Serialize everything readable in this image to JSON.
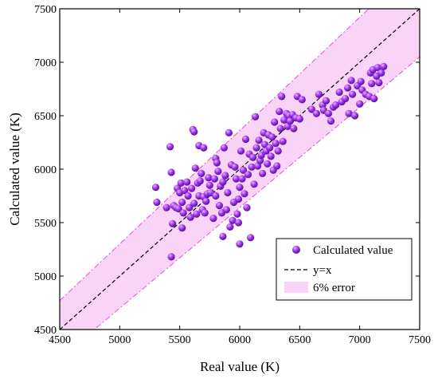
{
  "chart_data": {
    "type": "scatter",
    "title": "",
    "xlabel": "Real value (K)",
    "ylabel": "Calculated value (K)",
    "xlim": [
      4500,
      7500
    ],
    "ylim": [
      4500,
      7500
    ],
    "xticks": [
      "4500",
      "5000",
      "5500",
      "6000",
      "6500",
      "7000",
      "7500"
    ],
    "yticks": [
      "4500",
      "5000",
      "5500",
      "6000",
      "6500",
      "7000",
      "7500"
    ],
    "error_band_fraction": 0.06,
    "legend_position": "bottom-right",
    "legend": {
      "points": "Calculated value",
      "line": "y=x",
      "band": "6% error"
    },
    "colors": {
      "points": "#9b30e8",
      "band_fill": "#f9d4f6",
      "band_edge": "#e24fdc",
      "identity_line": "#000000"
    },
    "series": [
      {
        "name": "Calculated value",
        "points": [
          [
            5300,
            5830
          ],
          [
            5310,
            5690
          ],
          [
            5390,
            5640
          ],
          [
            5420,
            6210
          ],
          [
            5430,
            5970
          ],
          [
            5430,
            5180
          ],
          [
            5440,
            5490
          ],
          [
            5450,
            5660
          ],
          [
            5470,
            5640
          ],
          [
            5480,
            5820
          ],
          [
            5490,
            5630
          ],
          [
            5500,
            5780
          ],
          [
            5510,
            5870
          ],
          [
            5520,
            5690
          ],
          [
            5520,
            5450
          ],
          [
            5530,
            5590
          ],
          [
            5540,
            5800
          ],
          [
            5560,
            5880
          ],
          [
            5570,
            5750
          ],
          [
            5580,
            5640
          ],
          [
            5590,
            5550
          ],
          [
            5600,
            5820
          ],
          [
            5610,
            6370
          ],
          [
            5620,
            6350
          ],
          [
            5620,
            5680
          ],
          [
            5630,
            6010
          ],
          [
            5640,
            5580
          ],
          [
            5650,
            5870
          ],
          [
            5660,
            5750
          ],
          [
            5660,
            6220
          ],
          [
            5670,
            5890
          ],
          [
            5680,
            5960
          ],
          [
            5690,
            5620
          ],
          [
            5700,
            6200
          ],
          [
            5700,
            5740
          ],
          [
            5710,
            5590
          ],
          [
            5720,
            5700
          ],
          [
            5730,
            5770
          ],
          [
            5740,
            5920
          ],
          [
            5750,
            5850
          ],
          [
            5760,
            5780
          ],
          [
            5780,
            5540
          ],
          [
            5790,
            5910
          ],
          [
            5800,
            5750
          ],
          [
            5800,
            6100
          ],
          [
            5810,
            6060
          ],
          [
            5820,
            5980
          ],
          [
            5830,
            5660
          ],
          [
            5840,
            5840
          ],
          [
            5850,
            5590
          ],
          [
            5860,
            5370
          ],
          [
            5860,
            5880
          ],
          [
            5870,
            6200
          ],
          [
            5880,
            5940
          ],
          [
            5890,
            5620
          ],
          [
            5900,
            5780
          ],
          [
            5910,
            6340
          ],
          [
            5920,
            5460
          ],
          [
            5930,
            6040
          ],
          [
            5940,
            5520
          ],
          [
            5950,
            5690
          ],
          [
            5960,
            6020
          ],
          [
            5970,
            5910
          ],
          [
            5980,
            5580
          ],
          [
            5990,
            5720
          ],
          [
            5990,
            5500
          ],
          [
            6000,
            5830
          ],
          [
            6000,
            5300
          ],
          [
            6010,
            6170
          ],
          [
            6020,
            5910
          ],
          [
            6030,
            5990
          ],
          [
            6040,
            5770
          ],
          [
            6050,
            6280
          ],
          [
            6060,
            5640
          ],
          [
            6070,
            5950
          ],
          [
            6080,
            6140
          ],
          [
            6090,
            5360
          ],
          [
            6100,
            6020
          ],
          [
            6110,
            6110
          ],
          [
            6120,
            5860
          ],
          [
            6130,
            6490
          ],
          [
            6140,
            6200
          ],
          [
            6150,
            6030
          ],
          [
            6160,
            6270
          ],
          [
            6170,
            6080
          ],
          [
            6180,
            6130
          ],
          [
            6190,
            5960
          ],
          [
            6200,
            6340
          ],
          [
            6210,
            6230
          ],
          [
            6220,
            6170
          ],
          [
            6230,
            6050
          ],
          [
            6240,
            6320
          ],
          [
            6250,
            6200
          ],
          [
            6260,
            6120
          ],
          [
            6270,
            6300
          ],
          [
            6280,
            5990
          ],
          [
            6290,
            6440
          ],
          [
            6300,
            6240
          ],
          [
            6310,
            6030
          ],
          [
            6320,
            6170
          ],
          [
            6330,
            6540
          ],
          [
            6340,
            6380
          ],
          [
            6350,
            6680
          ],
          [
            6360,
            6260
          ],
          [
            6370,
            6460
          ],
          [
            6390,
            6520
          ],
          [
            6400,
            6400
          ],
          [
            6410,
            6500
          ],
          [
            6420,
            6450
          ],
          [
            6440,
            6510
          ],
          [
            6450,
            6380
          ],
          [
            6470,
            6480
          ],
          [
            6480,
            6680
          ],
          [
            6500,
            6470
          ],
          [
            6520,
            6650
          ],
          [
            6600,
            6560
          ],
          [
            6640,
            6520
          ],
          [
            6660,
            6700
          ],
          [
            6690,
            6600
          ],
          [
            6700,
            6550
          ],
          [
            6720,
            6640
          ],
          [
            6740,
            6520
          ],
          [
            6760,
            6450
          ],
          [
            6780,
            6580
          ],
          [
            6800,
            6600
          ],
          [
            6830,
            6720
          ],
          [
            6850,
            6630
          ],
          [
            6880,
            6660
          ],
          [
            6900,
            6760
          ],
          [
            6910,
            6520
          ],
          [
            6930,
            6830
          ],
          [
            6940,
            6700
          ],
          [
            6960,
            6500
          ],
          [
            6980,
            6780
          ],
          [
            7000,
            6610
          ],
          [
            7010,
            6820
          ],
          [
            7020,
            6740
          ],
          [
            7050,
            6700
          ],
          [
            7080,
            6680
          ],
          [
            7090,
            6900
          ],
          [
            7100,
            6800
          ],
          [
            7110,
            6930
          ],
          [
            7120,
            6660
          ],
          [
            7140,
            6870
          ],
          [
            7150,
            6950
          ],
          [
            7160,
            6810
          ],
          [
            7180,
            6900
          ],
          [
            7200,
            6960
          ]
        ]
      }
    ]
  }
}
